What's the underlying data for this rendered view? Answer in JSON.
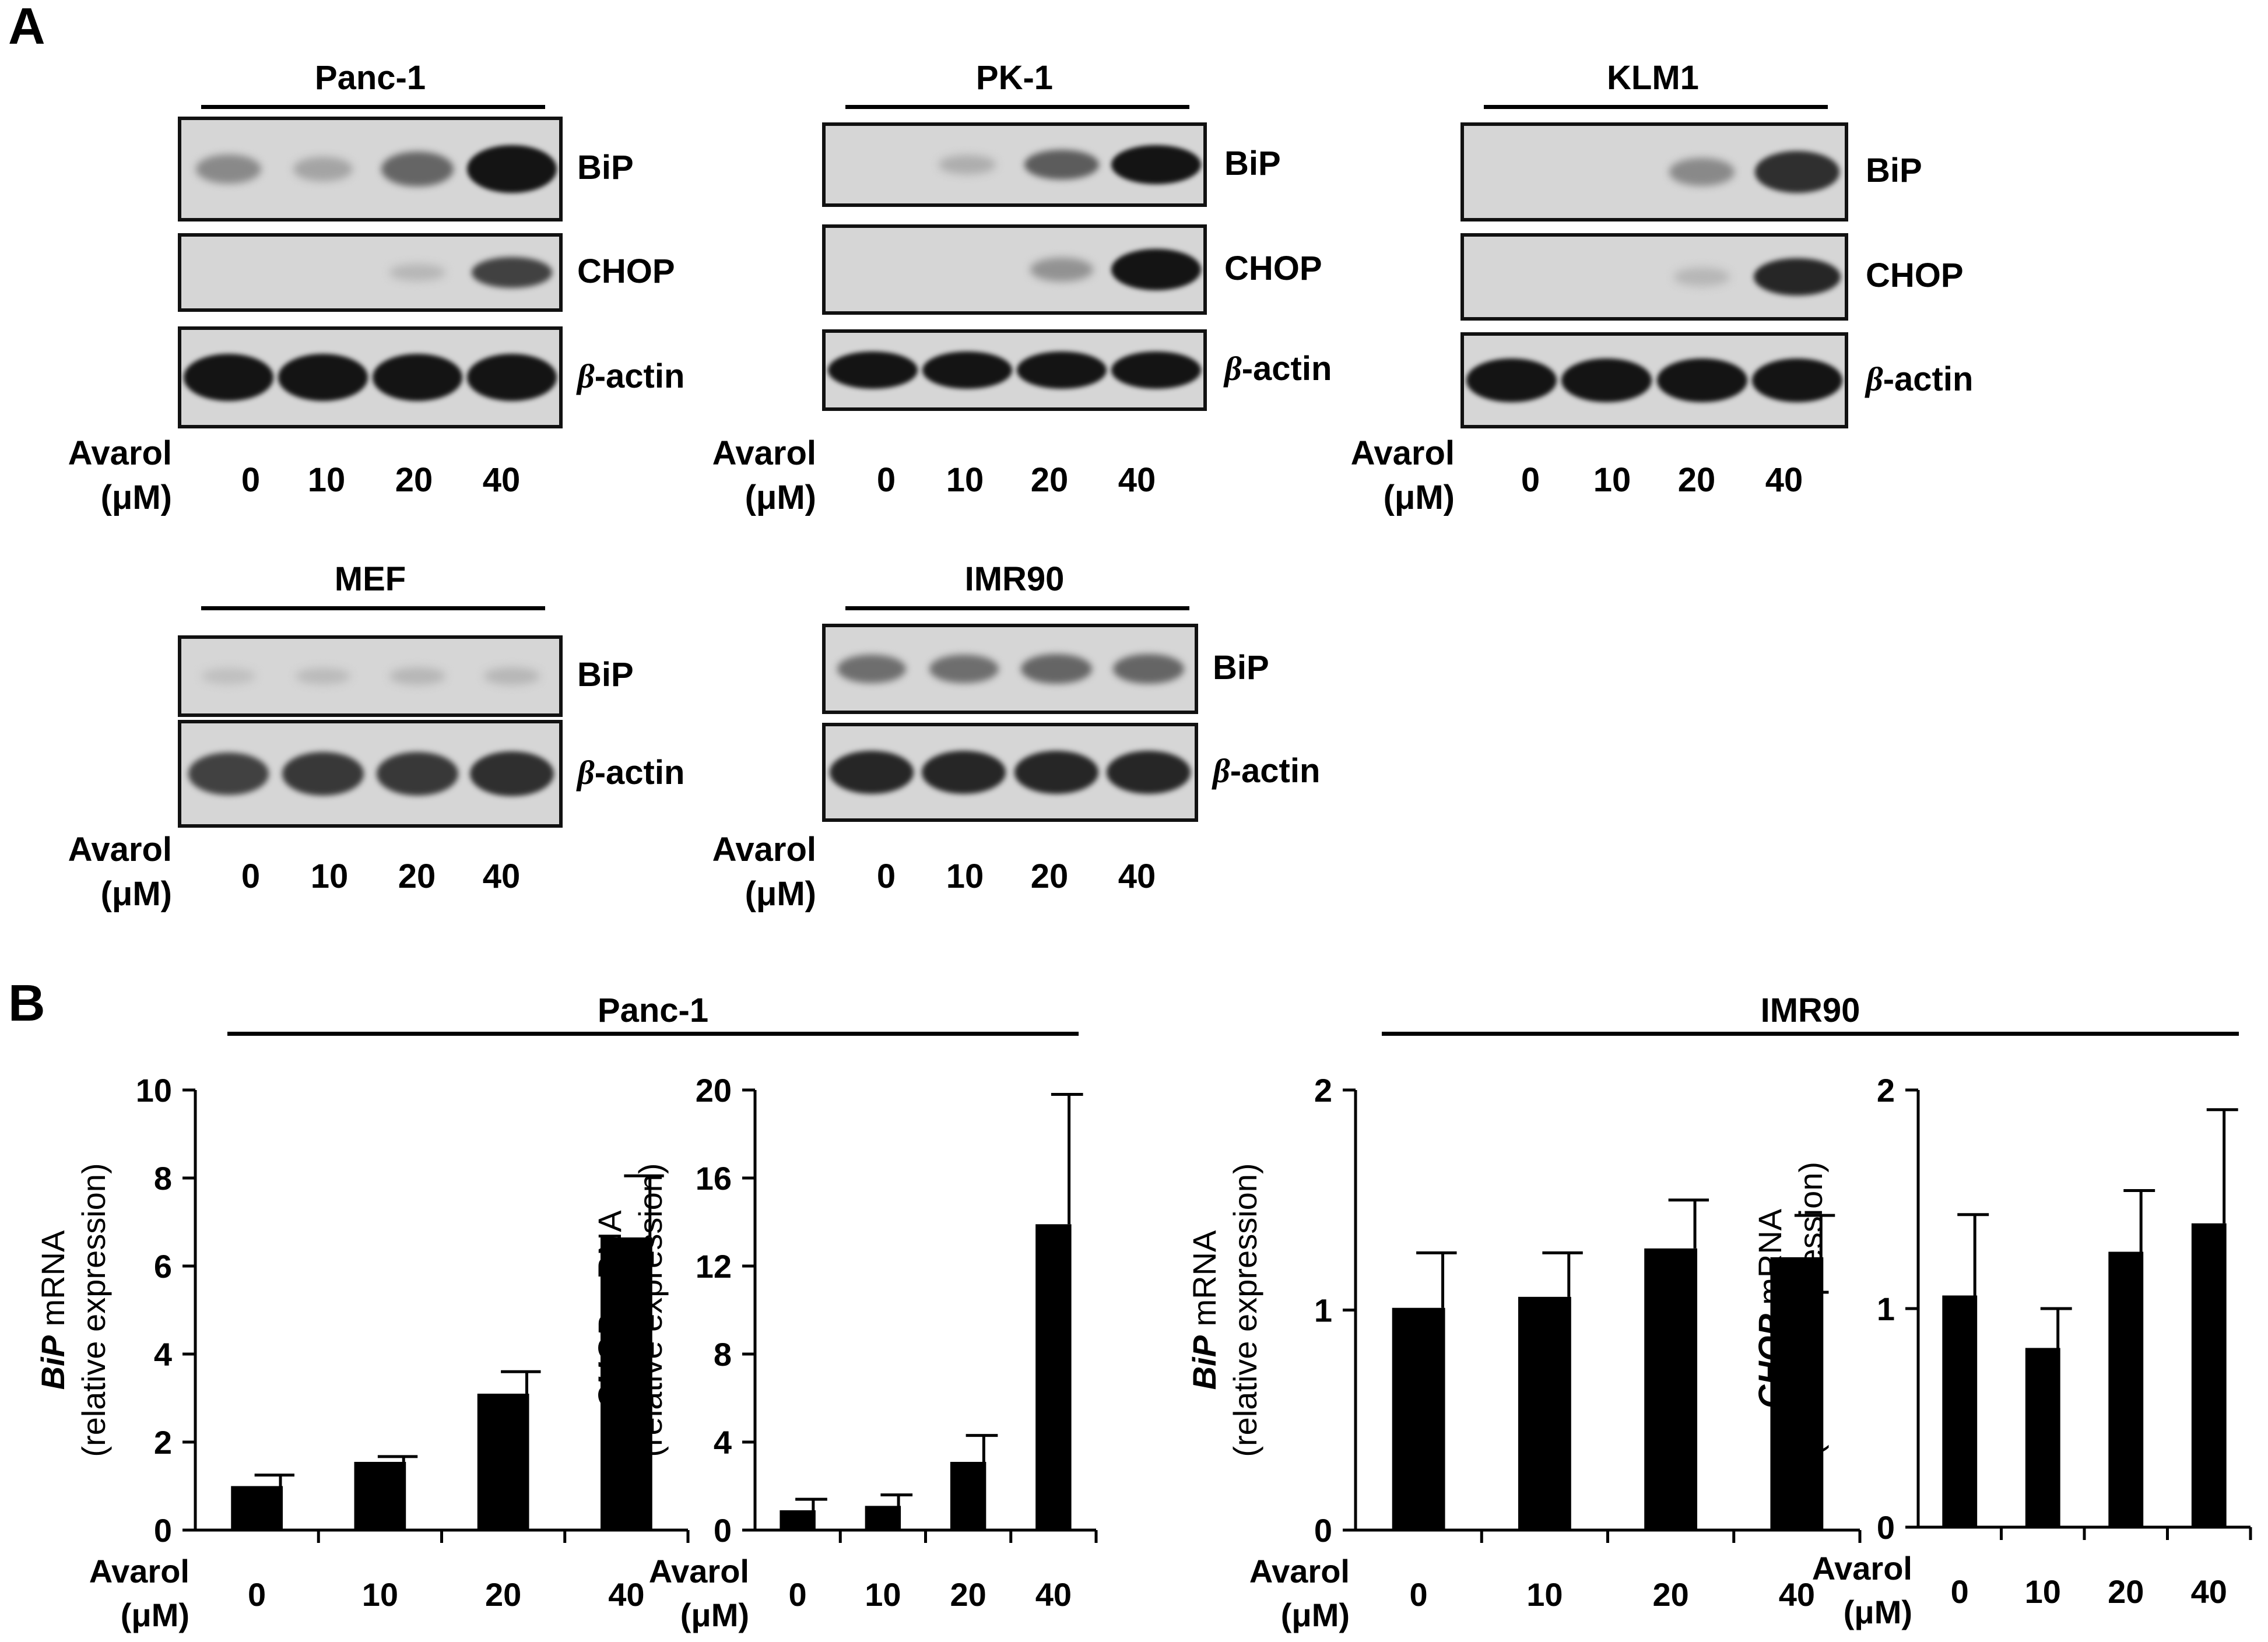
{
  "panel_a": {
    "letter": "A",
    "avarol_label_line1": "Avarol",
    "avarol_label_line2": "(μM)",
    "doses": [
      "0",
      "10",
      "20",
      "40"
    ],
    "blots": [
      {
        "cell_line": "Panc-1",
        "rows": [
          {
            "protein": "BiP",
            "intensities": [
              0.35,
              0.2,
              0.55,
              1.0
            ]
          },
          {
            "protein": "CHOP",
            "intensities": [
              0.0,
              0.0,
              0.1,
              0.75
            ]
          },
          {
            "protein": "β-actin",
            "intensities": [
              1.0,
              1.0,
              1.0,
              1.0
            ]
          }
        ]
      },
      {
        "cell_line": "PK-1",
        "rows": [
          {
            "protein": "BiP",
            "intensities": [
              0.0,
              0.15,
              0.6,
              1.0
            ]
          },
          {
            "protein": "CHOP",
            "intensities": [
              0.0,
              0.0,
              0.3,
              1.0
            ]
          },
          {
            "protein": "β-actin",
            "intensities": [
              1.0,
              1.0,
              1.0,
              1.0
            ]
          }
        ]
      },
      {
        "cell_line": "KLM1",
        "rows": [
          {
            "protein": "BiP",
            "intensities": [
              0.0,
              0.0,
              0.35,
              0.85
            ]
          },
          {
            "protein": "CHOP",
            "intensities": [
              0.0,
              0.0,
              0.1,
              0.9
            ]
          },
          {
            "protein": "β-actin",
            "intensities": [
              1.0,
              1.0,
              1.0,
              1.0
            ]
          }
        ]
      },
      {
        "cell_line": "MEF",
        "rows": [
          {
            "protein": "BiP",
            "intensities": [
              0.05,
              0.08,
              0.1,
              0.1
            ]
          },
          {
            "protein": "β-actin",
            "intensities": [
              0.75,
              0.8,
              0.8,
              0.85
            ]
          }
        ]
      },
      {
        "cell_line": "IMR90",
        "rows": [
          {
            "protein": "BiP",
            "intensities": [
              0.5,
              0.5,
              0.55,
              0.55
            ]
          },
          {
            "protein": "β-actin",
            "intensities": [
              0.9,
              0.9,
              0.9,
              0.9
            ]
          }
        ]
      }
    ]
  },
  "panel_b": {
    "letter": "B",
    "group_titles": [
      "Panc-1",
      "IMR90"
    ]
  },
  "chart_data": [
    {
      "type": "bar",
      "group": "Panc-1",
      "categories": [
        "0",
        "10",
        "20",
        "40"
      ],
      "values": [
        1.0,
        1.55,
        3.1,
        6.65
      ],
      "errors": [
        0.25,
        0.12,
        0.5,
        1.4
      ],
      "ylim": [
        0,
        10
      ],
      "yticks": [
        "0",
        "2",
        "4",
        "6",
        "8",
        "10"
      ],
      "ylabel_italic": "BiP",
      "ylabel_rest": " mRNA",
      "ylabel_line2": "(relative expression)",
      "xlabel_line1": "Avarol",
      "xlabel_line2": "(μM)"
    },
    {
      "type": "bar",
      "group": "Panc-1",
      "categories": [
        "0",
        "10",
        "20",
        "40"
      ],
      "values": [
        0.9,
        1.1,
        3.1,
        13.9
      ],
      "errors": [
        0.5,
        0.5,
        1.2,
        5.9
      ],
      "ylim": [
        0,
        20
      ],
      "yticks": [
        "0",
        "4",
        "8",
        "12",
        "16",
        "20"
      ],
      "ylabel_italic": "CHOP",
      "ylabel_rest": " mRNA",
      "ylabel_line2": "(relative expression)",
      "xlabel_line1": "Avarol",
      "xlabel_line2": "(μM)"
    },
    {
      "type": "bar",
      "group": "IMR90",
      "categories": [
        "0",
        "10",
        "20",
        "40"
      ],
      "values": [
        1.01,
        1.06,
        1.28,
        1.24
      ],
      "errors": [
        0.25,
        0.2,
        0.22,
        0.19
      ],
      "ylim": [
        0,
        2
      ],
      "yticks": [
        "0",
        "1",
        "2"
      ],
      "ylabel_italic": "BiP",
      "ylabel_rest": " mRNA",
      "ylabel_line2": "(relative expression)",
      "xlabel_line1": "Avarol",
      "xlabel_line2": "(μM)"
    },
    {
      "type": "bar",
      "group": "IMR90",
      "categories": [
        "0",
        "10",
        "20",
        "40"
      ],
      "values": [
        1.06,
        0.82,
        1.26,
        1.39
      ],
      "errors": [
        0.37,
        0.18,
        0.28,
        0.52
      ],
      "ylim": [
        0,
        2
      ],
      "yticks": [
        "0",
        "1",
        "2"
      ],
      "ylabel_italic": "CHOP",
      "ylabel_rest": " mRNA",
      "ylabel_line2": "(relative expression)",
      "xlabel_line1": "Avarol",
      "xlabel_line2": "(μM)"
    }
  ]
}
